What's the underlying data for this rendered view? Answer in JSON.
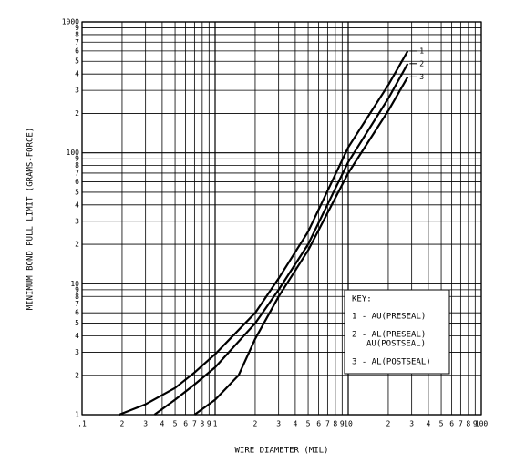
{
  "chart_data": {
    "type": "line",
    "x_label": "WIRE DIAMETER (MIL)",
    "y_label": "MINIMUM BOND PULL LIMIT (GRAMS-FORCE)",
    "xscale": "log",
    "yscale": "log",
    "grid": true,
    "xlim": [
      0.1,
      100
    ],
    "ylim": [
      1,
      1000
    ],
    "xticks": [
      {
        "value": 0.1,
        "label": ".1"
      },
      {
        "value": 0.2,
        "label": "2"
      },
      {
        "value": 0.3,
        "label": "3"
      },
      {
        "value": 0.4,
        "label": "4"
      },
      {
        "value": 0.5,
        "label": "5"
      },
      {
        "value": 0.6,
        "label": "6"
      },
      {
        "value": 0.7,
        "label": "7"
      },
      {
        "value": 0.8,
        "label": "8"
      },
      {
        "value": 0.9,
        "label": "9"
      },
      1,
      2,
      3,
      4,
      5,
      6,
      7,
      8,
      9,
      10,
      {
        "value": 20,
        "label": "2"
      },
      {
        "value": 30,
        "label": "3"
      },
      {
        "value": 40,
        "label": "4"
      },
      {
        "value": 50,
        "label": "5"
      },
      {
        "value": 60,
        "label": "6"
      },
      {
        "value": 70,
        "label": "7"
      },
      {
        "value": 80,
        "label": "8"
      },
      {
        "value": 90,
        "label": "9"
      },
      100
    ],
    "yticks": [
      1,
      2,
      3,
      4,
      5,
      6,
      7,
      8,
      9,
      10,
      {
        "value": 20,
        "label": "2"
      },
      {
        "value": 30,
        "label": "3"
      },
      {
        "value": 40,
        "label": "4"
      },
      {
        "value": 50,
        "label": "5"
      },
      {
        "value": 60,
        "label": "6"
      },
      {
        "value": 70,
        "label": "7"
      },
      {
        "value": 80,
        "label": "8"
      },
      {
        "value": 90,
        "label": "9"
      },
      100,
      {
        "value": 200,
        "label": "2"
      },
      {
        "value": 300,
        "label": "3"
      },
      {
        "value": 400,
        "label": "4"
      },
      {
        "value": 500,
        "label": "5"
      },
      {
        "value": 600,
        "label": "6"
      },
      {
        "value": 700,
        "label": "7"
      },
      {
        "value": 800,
        "label": "8"
      },
      {
        "value": 900,
        "label": "9"
      },
      1000
    ],
    "key": {
      "title": "KEY:",
      "entries": [
        [
          "1 - AU(PRESEAL)"
        ],
        [
          "2 - AL(PRESEAL)",
          "AU(POSTSEAL)"
        ],
        [
          "3 - AL(POSTSEAL)"
        ]
      ]
    },
    "series": [
      {
        "label": "1",
        "color": "#000000",
        "x": [
          0.19,
          0.3,
          0.5,
          0.7,
          1,
          2,
          3,
          5,
          10,
          20,
          28
        ],
        "y": [
          1,
          1.2,
          1.6,
          2.1,
          2.9,
          6,
          11,
          25,
          110,
          330,
          600
        ]
      },
      {
        "label": "2",
        "color": "#000000",
        "x": [
          0.35,
          0.5,
          0.7,
          1,
          2,
          3,
          5,
          10,
          20,
          28
        ],
        "y": [
          1,
          1.3,
          1.7,
          2.3,
          5,
          9,
          20,
          85,
          260,
          480
        ]
      },
      {
        "label": "3",
        "color": "#000000",
        "x": [
          0.7,
          1,
          1.5,
          2,
          3,
          5,
          10,
          20,
          28
        ],
        "y": [
          1,
          1.3,
          2,
          3.8,
          8,
          18,
          70,
          210,
          380
        ]
      }
    ]
  }
}
